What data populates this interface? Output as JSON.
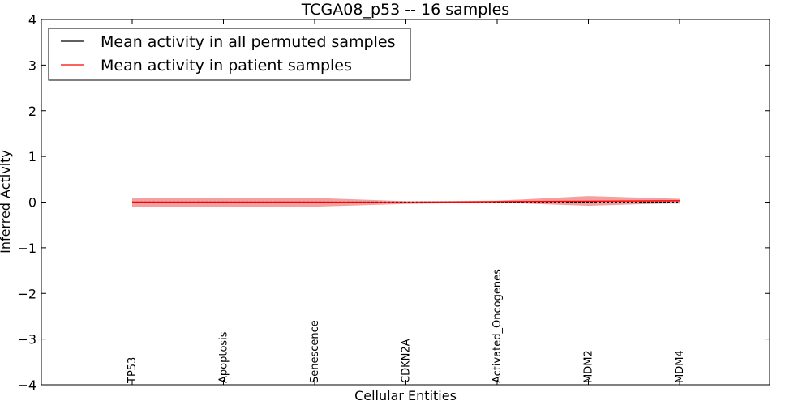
{
  "chart_data": {
    "type": "line",
    "title": "TCGA08_p53 -- 16 samples",
    "xlabel": "Cellular Entities",
    "ylabel": "Inferred Activity",
    "ylim": [
      -4,
      4
    ],
    "yticks": [
      -4,
      -3,
      -2,
      -1,
      0,
      1,
      2,
      3,
      4
    ],
    "ytick_labels": [
      "−4",
      "−3",
      "−2",
      "−1",
      "0",
      "1",
      "2",
      "3",
      "4"
    ],
    "categories": [
      "TP53",
      "Apoptosis",
      "Senescence",
      "CDKN2A",
      "Activated_Oncogenes",
      "MDM2",
      "MDM4"
    ],
    "legend_position": "top-left",
    "grid": false,
    "series": [
      {
        "name": "Mean activity in all permuted samples",
        "color": "#000000",
        "values": [
          0.0,
          0.0,
          0.0,
          0.0,
          0.0,
          0.0,
          0.0
        ],
        "band_lower": [
          -0.02,
          -0.02,
          -0.02,
          -0.02,
          -0.02,
          -0.03,
          -0.04
        ],
        "band_upper": [
          0.02,
          0.02,
          0.02,
          0.02,
          0.02,
          0.03,
          0.04
        ],
        "band_color": "#cccccc"
      },
      {
        "name": "Mean activity in patient samples",
        "color": "#ff0000",
        "values": [
          0.0,
          0.0,
          0.0,
          -0.01,
          0.01,
          0.02,
          0.03
        ],
        "band_lower": [
          -0.1,
          -0.1,
          -0.1,
          -0.04,
          -0.01,
          -0.08,
          -0.02
        ],
        "band_upper": [
          0.09,
          0.09,
          0.09,
          0.02,
          0.03,
          0.13,
          0.07
        ],
        "band_color": "#f08080"
      }
    ]
  }
}
